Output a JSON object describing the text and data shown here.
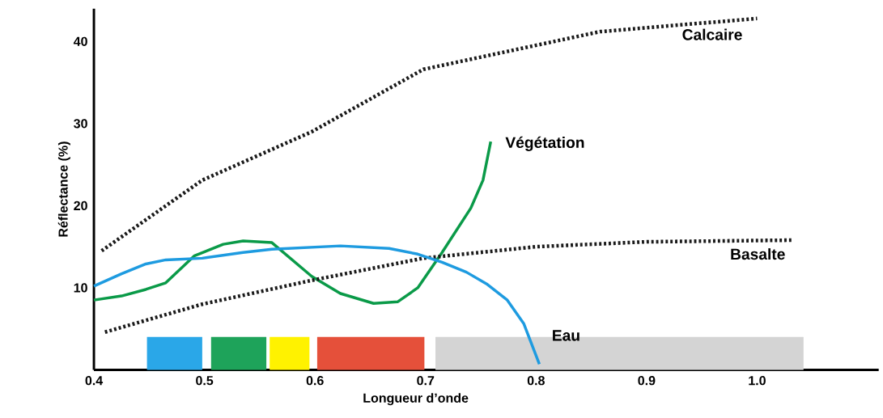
{
  "chart_data": {
    "type": "line",
    "xlabel": "Longueur d’onde",
    "ylabel": "Réflectance (%)",
    "xlim": [
      0.4,
      1.11
    ],
    "ylim": [
      0,
      44
    ],
    "xticks": [
      0.4,
      0.5,
      0.6,
      0.7,
      0.8,
      0.9,
      {
        "value": 1.0,
        "label": "1.0"
      }
    ],
    "yticks": [
      10,
      20,
      30,
      40
    ],
    "grid": false,
    "marker": "none",
    "series": [
      {
        "name": "Calcaire",
        "color": "#1a1a1a",
        "line_style": "dotted",
        "x": [
          0.407,
          0.498,
          0.597,
          0.698,
          0.858,
          1.0
        ],
        "values": [
          14.5,
          23.1,
          29,
          36.6,
          41.2,
          42.8
        ]
      },
      {
        "name": "Végétation",
        "color": "#0a9a48",
        "line_style": "solid",
        "x": [
          0.4,
          0.425,
          0.447,
          0.465,
          0.491,
          0.517,
          0.535,
          0.561,
          0.597,
          0.623,
          0.653,
          0.675,
          0.693,
          0.715,
          0.741,
          0.752,
          0.759
        ],
        "values": [
          8.5,
          9,
          9.8,
          10.6,
          13.9,
          15.3,
          15.7,
          15.5,
          11.4,
          9.3,
          8.1,
          8.3,
          10,
          14.3,
          19.7,
          23.1,
          27.8
        ]
      },
      {
        "name": "Basalte",
        "color": "#1a1a1a",
        "line_style": "dotted",
        "x": [
          0.41,
          0.498,
          0.597,
          0.698,
          0.8,
          0.9,
          1.031
        ],
        "values": [
          4.6,
          8,
          10.9,
          13.6,
          15,
          15.6,
          15.8
        ]
      },
      {
        "name": "Eau",
        "color": "#1e9be0",
        "line_style": "solid",
        "x": [
          0.4,
          0.425,
          0.447,
          0.465,
          0.498,
          0.535,
          0.561,
          0.623,
          0.667,
          0.693,
          0.715,
          0.737,
          0.756,
          0.774,
          0.789,
          0.803
        ],
        "values": [
          10.2,
          11.7,
          12.9,
          13.4,
          13.6,
          14.3,
          14.7,
          15.1,
          14.8,
          14.1,
          13.1,
          11.9,
          10.4,
          8.5,
          5.6,
          0.7
        ]
      }
    ],
    "bands": [
      {
        "axis": "x",
        "from": 0.448,
        "to": 0.498,
        "color": "#2aa7e8"
      },
      {
        "axis": "x",
        "from": 0.506,
        "to": 0.556,
        "color": "#1ea35a"
      },
      {
        "axis": "x",
        "from": 0.559,
        "to": 0.595,
        "color": "#fff200"
      },
      {
        "axis": "x",
        "from": 0.602,
        "to": 0.699,
        "color": "#e5503a"
      },
      {
        "axis": "x",
        "from": 0.709,
        "to": 1.042,
        "color": "#d4d4d4"
      }
    ]
  }
}
